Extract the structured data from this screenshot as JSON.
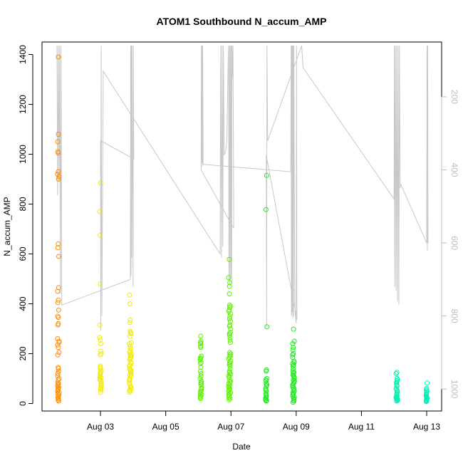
{
  "chart_data": {
    "type": "scatter",
    "title": "ATOM1 Southbound N_accum_AMP",
    "xlabel": "Date",
    "ylabel": "N_accum_AMP",
    "xlim": [
      "2023-08-01T05:00",
      "2023-08-13T11:00"
    ],
    "ylim": [
      -30,
      1450
    ],
    "y_ticks": [
      0,
      200,
      400,
      600,
      800,
      1000,
      1200,
      1400
    ],
    "x_ticks": [
      {
        "t": "2023-08-03T00:00",
        "label": "Aug 03"
      },
      {
        "t": "2023-08-05T00:00",
        "label": "Aug 05"
      },
      {
        "t": "2023-08-07T00:00",
        "label": "Aug 07"
      },
      {
        "t": "2023-08-09T00:00",
        "label": "Aug 09"
      },
      {
        "t": "2023-08-11T00:00",
        "label": "Aug 11"
      },
      {
        "t": "2023-08-13T00:00",
        "label": "Aug 13"
      }
    ],
    "secondary_axis": {
      "side": "right",
      "reversed": true,
      "ylim": [
        1060,
        50
      ],
      "ticks": [
        200,
        400,
        600,
        800,
        1000
      ],
      "color": "#bdbdbd"
    },
    "grid": false,
    "point_style": "open-circle",
    "series": [
      {
        "color": "#ff8c00",
        "clusters": [
          {
            "t": "2023-08-01T17:00",
            "spread_h": 1.2,
            "points": [
              1390,
              1080,
              1050,
              1010,
              1005,
              930,
              920,
              910,
              900,
              640,
              625,
              590,
              465,
              450,
              415,
              405,
              375,
              350,
              345,
              320,
              315,
              260,
              250,
              245,
              235,
              225,
              205,
              195,
              145,
              140,
              130,
              120,
              110,
              100,
              95,
              85,
              80,
              75,
              70,
              65,
              60,
              55,
              50,
              45,
              40,
              35,
              30,
              25,
              20,
              15,
              10
            ]
          }
        ]
      },
      {
        "color": "#f2e800",
        "clusters": [
          {
            "t": "2023-08-03T00:00",
            "spread_h": 1.2,
            "points": [
              885,
              770,
              675,
              480,
              315,
              265,
              255,
              240,
              210,
              200,
              195,
              150,
              145,
              140,
              130,
              125,
              120,
              115,
              110,
              105,
              100,
              95,
              90,
              80,
              75,
              70,
              65,
              60,
              55,
              45
            ]
          },
          {
            "t": "2023-08-03T22:00",
            "spread_h": 1.5,
            "points": [
              435,
              400,
              335,
              325,
              290,
              285,
              280,
              270,
              245,
              240,
              230,
              220,
              210,
              205,
              200,
              195,
              190,
              185,
              180,
              175,
              165,
              160,
              155,
              150,
              140,
              135,
              130,
              125,
              120,
              115,
              110,
              100,
              95,
              90,
              80,
              70,
              65,
              60,
              55,
              50,
              45
            ]
          }
        ]
      },
      {
        "color": "#5cf000",
        "clusters": [
          {
            "t": "2023-08-06T02:00",
            "spread_h": 1.2,
            "points": [
              270,
              250,
              245,
              240,
              230,
              225,
              190,
              185,
              180,
              175,
              165,
              160,
              145,
              130,
              120,
              110,
              100,
              90,
              85,
              80,
              75,
              65,
              60,
              55,
              50,
              45,
              40,
              35,
              30,
              25,
              20
            ]
          },
          {
            "t": "2023-08-06T23:00",
            "spread_h": 1.5,
            "points": [
              578,
              505,
              485,
              470,
              440,
              395,
              390,
              385,
              375,
              370,
              360,
              350,
              340,
              330,
              315,
              310,
              300,
              285,
              280,
              275,
              265,
              255,
              245,
              205,
              200,
              195,
              190,
              185,
              180,
              170,
              165,
              160,
              155,
              150,
              140,
              130,
              125,
              120,
              115,
              110,
              105,
              95,
              90,
              85,
              80,
              75,
              70,
              65,
              60,
              55,
              50,
              45,
              40,
              35,
              30,
              25,
              20,
              15
            ]
          }
        ]
      },
      {
        "color": "#1ee81e",
        "clusters": [
          {
            "t": "2023-08-08T02:00",
            "spread_h": 1.2,
            "points": [
              915,
              778,
              308,
              135,
              130,
              100,
              95,
              90,
              80,
              75,
              70,
              60,
              55,
              50,
              40,
              35,
              30,
              25,
              20,
              15,
              12,
              10
            ]
          },
          {
            "t": "2023-08-08T22:00",
            "spread_h": 1.5,
            "points": [
              298,
              250,
              240,
              225,
              215,
              200,
              195,
              185,
              170,
              165,
              160,
              155,
              150,
              140,
              130,
              125,
              120,
              115,
              110,
              105,
              100,
              95,
              90,
              85,
              80,
              75,
              70,
              65,
              60,
              55,
              50,
              45,
              40,
              35,
              30,
              25,
              20,
              15,
              10,
              5
            ]
          }
        ]
      },
      {
        "color": "#00f0b4",
        "clusters": [
          {
            "t": "2023-08-12T02:00",
            "spread_h": 1.3,
            "points": [
              125,
              120,
              100,
              95,
              90,
              85,
              80,
              75,
              70,
              60,
              55,
              50,
              45,
              40,
              35,
              30,
              28,
              25,
              22,
              20,
              18,
              15,
              12,
              10
            ]
          },
          {
            "t": "2023-08-13T00:00",
            "spread_h": 0.8,
            "points": [
              82,
              60,
              55,
              50,
              45,
              40,
              35,
              30,
              28,
              25,
              22,
              20,
              18,
              15,
              12,
              10,
              8
            ]
          }
        ]
      }
    ],
    "line_series": {
      "color": "#c8c8c8",
      "axis": "secondary",
      "points": [
        [
          "2023-08-01T16:00",
          60
        ],
        [
          "2023-08-01T16:30",
          470
        ],
        [
          "2023-08-01T17:00",
          60
        ],
        [
          "2023-08-01T17:30",
          430
        ],
        [
          "2023-08-01T18:00",
          60
        ],
        [
          "2023-08-01T18:30",
          740
        ],
        [
          "2023-08-01T19:00",
          60
        ],
        [
          "2023-08-01T19:30",
          770
        ],
        [
          "2023-08-03T22:00",
          700
        ],
        [
          "2023-08-03T22:15",
          60
        ],
        [
          "2023-08-03T22:30",
          690
        ],
        [
          "2023-08-03T22:45",
          60
        ],
        [
          "2023-08-03T23:00",
          640
        ],
        [
          "2023-08-03T23:15",
          60
        ],
        [
          "2023-08-04T00:00",
          720
        ],
        [
          "2023-08-04T00:15",
          60
        ],
        [
          "2023-08-04T00:30",
          370
        ],
        [
          "2023-08-03T00:00",
          320
        ],
        [
          "2023-08-03T00:15",
          840
        ],
        [
          "2023-08-03T00:30",
          60
        ],
        [
          "2023-08-03T01:00",
          800
        ],
        [
          "2023-08-03T02:00",
          130
        ],
        [
          "2023-08-06T16:00",
          630
        ],
        [
          "2023-08-06T16:30",
          60
        ],
        [
          "2023-08-06T17:00",
          640
        ],
        [
          "2023-08-06T17:30",
          60
        ],
        [
          "2023-08-06T18:00",
          610
        ],
        [
          "2023-08-06T18:30",
          60
        ],
        [
          "2023-08-06T19:00",
          360
        ],
        [
          "2023-08-06T20:00",
          350
        ],
        [
          "2023-08-06T21:00",
          320
        ],
        [
          "2023-08-06T22:00",
          90
        ],
        [
          "2023-08-06T22:15",
          60
        ],
        [
          "2023-08-06T22:30",
          700
        ],
        [
          "2023-08-06T23:00",
          60
        ],
        [
          "2023-08-06T23:15",
          720
        ],
        [
          "2023-08-06T23:30",
          60
        ],
        [
          "2023-08-07T00:00",
          690
        ],
        [
          "2023-08-07T00:15",
          60
        ],
        [
          "2023-08-07T00:30",
          710
        ],
        [
          "2023-08-07T00:45",
          60
        ],
        [
          "2023-08-07T01:00",
          150
        ],
        [
          "2023-08-07T01:30",
          60
        ],
        [
          "2023-08-07T02:00",
          560
        ],
        [
          "2023-08-06T02:00",
          400
        ],
        [
          "2023-08-06T02:15",
          60
        ],
        [
          "2023-08-06T02:30",
          380
        ],
        [
          "2023-08-06T02:45",
          60
        ],
        [
          "2023-08-06T03:00",
          390
        ],
        [
          "2023-08-06T03:15",
          60
        ],
        [
          "2023-08-06T03:30",
          385
        ],
        [
          "2023-08-08T20:00",
          405
        ],
        [
          "2023-08-08T20:15",
          60
        ],
        [
          "2023-08-08T20:30",
          800
        ],
        [
          "2023-08-08T20:45",
          60
        ],
        [
          "2023-08-08T21:00",
          790
        ],
        [
          "2023-08-08T21:15",
          60
        ],
        [
          "2023-08-08T21:30",
          805
        ],
        [
          "2023-08-08T21:45",
          60
        ],
        [
          "2023-08-08T22:00",
          800
        ],
        [
          "2023-08-08T22:15",
          60
        ],
        [
          "2023-08-08T23:00",
          780
        ],
        [
          "2023-08-09T00:00",
          820
        ],
        [
          "2023-08-09T00:15",
          60
        ],
        [
          "2023-08-09T00:30",
          810
        ],
        [
          "2023-08-08T02:00",
          360
        ],
        [
          "2023-08-08T02:15",
          830
        ],
        [
          "2023-08-08T02:30",
          60
        ],
        [
          "2023-08-08T03:00",
          320
        ],
        [
          "2023-08-09T04:00",
          60
        ],
        [
          "2023-08-09T05:00",
          120
        ],
        [
          "2023-08-12T00:00",
          480
        ],
        [
          "2023-08-12T00:15",
          60
        ],
        [
          "2023-08-12T00:30",
          720
        ],
        [
          "2023-08-12T01:00",
          60
        ],
        [
          "2023-08-12T01:30",
          730
        ],
        [
          "2023-08-12T02:00",
          60
        ],
        [
          "2023-08-12T02:30",
          760
        ],
        [
          "2023-08-12T03:00",
          60
        ],
        [
          "2023-08-12T03:30",
          770
        ],
        [
          "2023-08-12T04:00",
          60
        ],
        [
          "2023-08-12T04:30",
          450
        ],
        [
          "2023-08-12T05:00",
          440
        ],
        [
          "2023-08-13T00:00",
          600
        ],
        [
          "2023-08-13T00:15",
          60
        ],
        [
          "2023-08-13T00:30",
          620
        ],
        [
          "2023-08-13T00:45",
          60
        ],
        [
          "2023-08-13T01:00",
          600
        ]
      ]
    }
  }
}
